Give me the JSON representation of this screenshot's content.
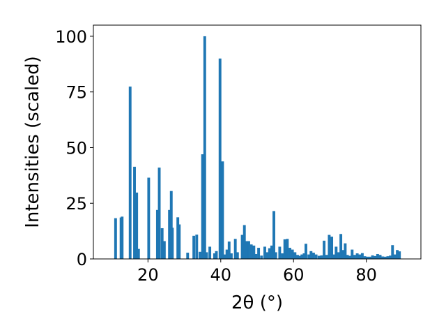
{
  "chart_data": {
    "type": "bar",
    "xlabel": "2θ (°)",
    "ylabel": "Intensities (scaled)",
    "xlim": [
      5,
      95
    ],
    "ylim": [
      0,
      105
    ],
    "xticks": [
      20,
      40,
      60,
      80
    ],
    "yticks": [
      0,
      25,
      50,
      75,
      100
    ],
    "bar_width": 0.75,
    "color": "#1f77b4",
    "grid": false,
    "x": [
      11.1,
      12.6,
      12.9,
      15.1,
      16.3,
      16.9,
      17.4,
      20.2,
      22.6,
      23.1,
      23.9,
      24.5,
      25.9,
      26.4,
      26.7,
      28.2,
      28.6,
      30.9,
      32.6,
      33.4,
      34.3,
      35.0,
      35.6,
      36.1,
      37.0,
      38.3,
      38.8,
      39.8,
      40.5,
      41.1,
      41.7,
      42.3,
      42.9,
      44.0,
      44.6,
      45.9,
      46.5,
      47.1,
      47.7,
      48.4,
      49.1,
      49.7,
      50.4,
      51.2,
      52.1,
      52.7,
      53.4,
      54.0,
      54.6,
      55.1,
      56.2,
      56.9,
      57.6,
      58.3,
      59.0,
      59.7,
      60.4,
      61.1,
      61.7,
      62.3,
      62.9,
      63.4,
      64.2,
      64.8,
      65.5,
      66.2,
      67.0,
      67.7,
      68.4,
      69.1,
      69.8,
      70.5,
      71.0,
      71.7,
      72.4,
      73.0,
      73.6,
      74.2,
      74.8,
      75.4,
      76.1,
      76.8,
      77.5,
      78.2,
      78.9,
      79.6,
      80.3,
      81.0,
      81.7,
      82.4,
      83.1,
      83.8,
      84.5,
      85.2,
      85.9,
      86.6,
      87.2,
      87.9,
      88.5,
      89.1
    ],
    "values": [
      18.3,
      18.6,
      19.0,
      77.4,
      41.4,
      29.8,
      4.5,
      36.5,
      22.0,
      41.0,
      13.8,
      8.0,
      22.0,
      30.5,
      14.0,
      18.7,
      15.5,
      2.8,
      10.4,
      10.9,
      3.2,
      47.0,
      100.0,
      3.0,
      5.5,
      2.5,
      3.5,
      90.0,
      43.8,
      2.0,
      4.2,
      7.8,
      2.5,
      9.0,
      3.0,
      10.8,
      15.2,
      8.0,
      8.0,
      6.5,
      6.0,
      2.2,
      5.0,
      1.5,
      5.5,
      3.0,
      4.8,
      6.0,
      21.5,
      3.0,
      5.5,
      2.5,
      8.8,
      9.0,
      5.0,
      4.2,
      3.0,
      1.8,
      1.4,
      2.0,
      2.5,
      6.8,
      2.0,
      3.5,
      2.8,
      2.0,
      1.4,
      1.6,
      8.2,
      1.8,
      10.8,
      10.0,
      2.0,
      5.5,
      3.0,
      11.2,
      4.0,
      7.0,
      1.8,
      1.4,
      4.2,
      1.8,
      2.5,
      2.0,
      2.6,
      1.2,
      1.0,
      1.0,
      1.6,
      1.3,
      2.2,
      1.8,
      1.1,
      1.0,
      1.2,
      1.5,
      6.2,
      2.0,
      4.0,
      3.4
    ]
  }
}
